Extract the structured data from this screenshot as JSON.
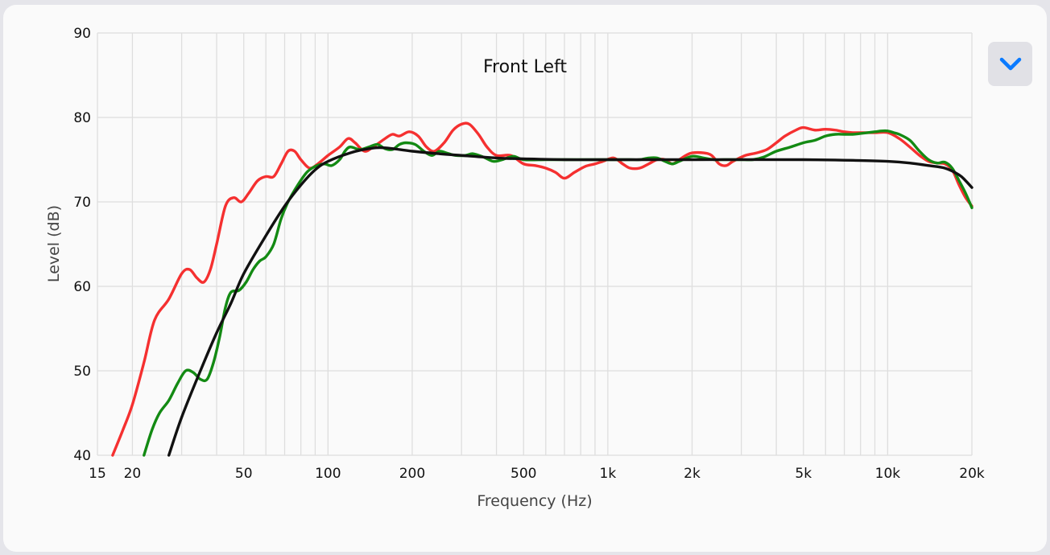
{
  "collapse_button": {
    "icon": "chevron-down-icon",
    "color": "#0a7aff"
  },
  "chart_data": {
    "type": "line",
    "title": "Front Left",
    "xlabel": "Frequency (Hz)",
    "ylabel": "Level (dB)",
    "xscale": "log",
    "xlim": [
      15,
      20000
    ],
    "ylim": [
      40,
      90
    ],
    "grid": true,
    "x_ticks": [
      {
        "value": 15,
        "label": "15"
      },
      {
        "value": 20,
        "label": "20"
      },
      {
        "value": 50,
        "label": "50"
      },
      {
        "value": 100,
        "label": "100"
      },
      {
        "value": 200,
        "label": "200"
      },
      {
        "value": 500,
        "label": "500"
      },
      {
        "value": 1000,
        "label": "1k"
      },
      {
        "value": 2000,
        "label": "2k"
      },
      {
        "value": 5000,
        "label": "5k"
      },
      {
        "value": 10000,
        "label": "10k"
      },
      {
        "value": 20000,
        "label": "20k"
      }
    ],
    "x_minor_grid": [
      30,
      40,
      60,
      70,
      80,
      90,
      300,
      400,
      600,
      700,
      800,
      900,
      3000,
      4000,
      6000,
      7000,
      8000,
      9000
    ],
    "y_ticks": [
      {
        "value": 40,
        "label": "40"
      },
      {
        "value": 50,
        "label": "50"
      },
      {
        "value": 60,
        "label": "60"
      },
      {
        "value": 70,
        "label": "70"
      },
      {
        "value": 80,
        "label": "80"
      },
      {
        "value": 90,
        "label": "90"
      }
    ],
    "series": [
      {
        "color": "#f53030",
        "points": [
          [
            17,
            40
          ],
          [
            18.5,
            43
          ],
          [
            20,
            46
          ],
          [
            22,
            51
          ],
          [
            24,
            56
          ],
          [
            27,
            58.5
          ],
          [
            30,
            61.5
          ],
          [
            32,
            62
          ],
          [
            34,
            61
          ],
          [
            36,
            60.5
          ],
          [
            38,
            62
          ],
          [
            40,
            65
          ],
          [
            43,
            69.5
          ],
          [
            46,
            70.5
          ],
          [
            49,
            70
          ],
          [
            52,
            71
          ],
          [
            56,
            72.5
          ],
          [
            60,
            73
          ],
          [
            64,
            73
          ],
          [
            68,
            74.5
          ],
          [
            72,
            76
          ],
          [
            76,
            76
          ],
          [
            80,
            75
          ],
          [
            86,
            74
          ],
          [
            92,
            74.5
          ],
          [
            100,
            75.5
          ],
          [
            110,
            76.5
          ],
          [
            118,
            77.5
          ],
          [
            125,
            77
          ],
          [
            135,
            76
          ],
          [
            145,
            76.5
          ],
          [
            160,
            77.5
          ],
          [
            170,
            78
          ],
          [
            180,
            77.8
          ],
          [
            195,
            78.3
          ],
          [
            210,
            77.8
          ],
          [
            225,
            76.5
          ],
          [
            240,
            76
          ],
          [
            260,
            77
          ],
          [
            280,
            78.5
          ],
          [
            300,
            79.2
          ],
          [
            320,
            79.2
          ],
          [
            345,
            78
          ],
          [
            370,
            76.5
          ],
          [
            400,
            75.5
          ],
          [
            450,
            75.5
          ],
          [
            500,
            74.5
          ],
          [
            550,
            74.3
          ],
          [
            600,
            74
          ],
          [
            650,
            73.5
          ],
          [
            700,
            72.8
          ],
          [
            760,
            73.5
          ],
          [
            830,
            74.2
          ],
          [
            900,
            74.5
          ],
          [
            960,
            74.8
          ],
          [
            1050,
            75.2
          ],
          [
            1130,
            74.5
          ],
          [
            1200,
            74
          ],
          [
            1300,
            74
          ],
          [
            1400,
            74.5
          ],
          [
            1500,
            75
          ],
          [
            1600,
            75
          ],
          [
            1700,
            74.5
          ],
          [
            1800,
            75
          ],
          [
            1900,
            75.5
          ],
          [
            2000,
            75.8
          ],
          [
            2200,
            75.8
          ],
          [
            2350,
            75.5
          ],
          [
            2500,
            74.5
          ],
          [
            2650,
            74.3
          ],
          [
            2800,
            74.8
          ],
          [
            3100,
            75.5
          ],
          [
            3400,
            75.8
          ],
          [
            3700,
            76.2
          ],
          [
            4000,
            77
          ],
          [
            4300,
            77.8
          ],
          [
            4700,
            78.5
          ],
          [
            5000,
            78.8
          ],
          [
            5500,
            78.5
          ],
          [
            6000,
            78.6
          ],
          [
            6500,
            78.5
          ],
          [
            7000,
            78.3
          ],
          [
            7500,
            78.2
          ],
          [
            8000,
            78.2
          ],
          [
            9000,
            78.2
          ],
          [
            10000,
            78.2
          ],
          [
            11000,
            77.5
          ],
          [
            12000,
            76.5
          ],
          [
            13000,
            75.5
          ],
          [
            14000,
            74.8
          ],
          [
            15000,
            74.6
          ],
          [
            16000,
            74.5
          ],
          [
            17000,
            73.8
          ],
          [
            18000,
            72
          ],
          [
            19000,
            70.5
          ],
          [
            20000,
            69.5
          ]
        ]
      },
      {
        "color": "#138a13",
        "points": [
          [
            22,
            40
          ],
          [
            23.5,
            43
          ],
          [
            25,
            45
          ],
          [
            27,
            46.5
          ],
          [
            29,
            48.5
          ],
          [
            31,
            50
          ],
          [
            33,
            49.8
          ],
          [
            35,
            49
          ],
          [
            37,
            49
          ],
          [
            39,
            51
          ],
          [
            41,
            54
          ],
          [
            43,
            57.5
          ],
          [
            45,
            59.3
          ],
          [
            48,
            59.5
          ],
          [
            51,
            60.5
          ],
          [
            54,
            62
          ],
          [
            57,
            63
          ],
          [
            60,
            63.5
          ],
          [
            64,
            65
          ],
          [
            68,
            68
          ],
          [
            72,
            70
          ],
          [
            78,
            72
          ],
          [
            84,
            73.5
          ],
          [
            90,
            74.2
          ],
          [
            97,
            74.5
          ],
          [
            103,
            74.3
          ],
          [
            110,
            75
          ],
          [
            115,
            76
          ],
          [
            120,
            76.5
          ],
          [
            130,
            76.2
          ],
          [
            140,
            76.5
          ],
          [
            150,
            76.8
          ],
          [
            160,
            76.3
          ],
          [
            170,
            76.2
          ],
          [
            180,
            76.8
          ],
          [
            190,
            77
          ],
          [
            205,
            76.8
          ],
          [
            220,
            76
          ],
          [
            235,
            75.5
          ],
          [
            250,
            76
          ],
          [
            265,
            75.8
          ],
          [
            285,
            75.5
          ],
          [
            310,
            75.5
          ],
          [
            330,
            75.7
          ],
          [
            360,
            75.3
          ],
          [
            390,
            74.8
          ],
          [
            420,
            75
          ],
          [
            460,
            75.4
          ],
          [
            500,
            75
          ],
          [
            600,
            75
          ],
          [
            700,
            75
          ],
          [
            800,
            75
          ],
          [
            900,
            75
          ],
          [
            1000,
            75
          ],
          [
            1100,
            75
          ],
          [
            1200,
            75
          ],
          [
            1300,
            75
          ],
          [
            1400,
            75.2
          ],
          [
            1500,
            75.2
          ],
          [
            1600,
            74.8
          ],
          [
            1700,
            74.5
          ],
          [
            1800,
            74.8
          ],
          [
            2000,
            75.4
          ],
          [
            2200,
            75.2
          ],
          [
            2400,
            75
          ],
          [
            2600,
            75
          ],
          [
            2800,
            75
          ],
          [
            3000,
            75
          ],
          [
            3300,
            75
          ],
          [
            3600,
            75.3
          ],
          [
            4000,
            76
          ],
          [
            4500,
            76.5
          ],
          [
            5000,
            77
          ],
          [
            5500,
            77.3
          ],
          [
            6000,
            77.8
          ],
          [
            6500,
            78
          ],
          [
            7000,
            78
          ],
          [
            7500,
            78
          ],
          [
            8000,
            78.1
          ],
          [
            9000,
            78.3
          ],
          [
            9500,
            78.4
          ],
          [
            10000,
            78.4
          ],
          [
            10500,
            78.2
          ],
          [
            11000,
            78
          ],
          [
            12000,
            77.3
          ],
          [
            13000,
            76
          ],
          [
            14000,
            75
          ],
          [
            15000,
            74.6
          ],
          [
            16000,
            74.7
          ],
          [
            17000,
            74
          ],
          [
            18000,
            72.5
          ],
          [
            19000,
            71
          ],
          [
            20000,
            69.3
          ]
        ]
      },
      {
        "color": "#111111",
        "points": [
          [
            27,
            40
          ],
          [
            30,
            44.5
          ],
          [
            35,
            50
          ],
          [
            40,
            54.5
          ],
          [
            45,
            58
          ],
          [
            50,
            61.5
          ],
          [
            60,
            66
          ],
          [
            70,
            69.5
          ],
          [
            80,
            72
          ],
          [
            90,
            73.8
          ],
          [
            100,
            74.8
          ],
          [
            120,
            75.8
          ],
          [
            140,
            76.3
          ],
          [
            160,
            76.4
          ],
          [
            200,
            76
          ],
          [
            250,
            75.7
          ],
          [
            300,
            75.5
          ],
          [
            400,
            75.2
          ],
          [
            500,
            75.1
          ],
          [
            700,
            75
          ],
          [
            1000,
            75
          ],
          [
            2000,
            75
          ],
          [
            5000,
            75
          ],
          [
            8000,
            74.9
          ],
          [
            10000,
            74.8
          ],
          [
            12000,
            74.6
          ],
          [
            14000,
            74.3
          ],
          [
            16000,
            74
          ],
          [
            18000,
            73.2
          ],
          [
            19000,
            72.5
          ],
          [
            20000,
            71.7
          ]
        ]
      }
    ]
  }
}
